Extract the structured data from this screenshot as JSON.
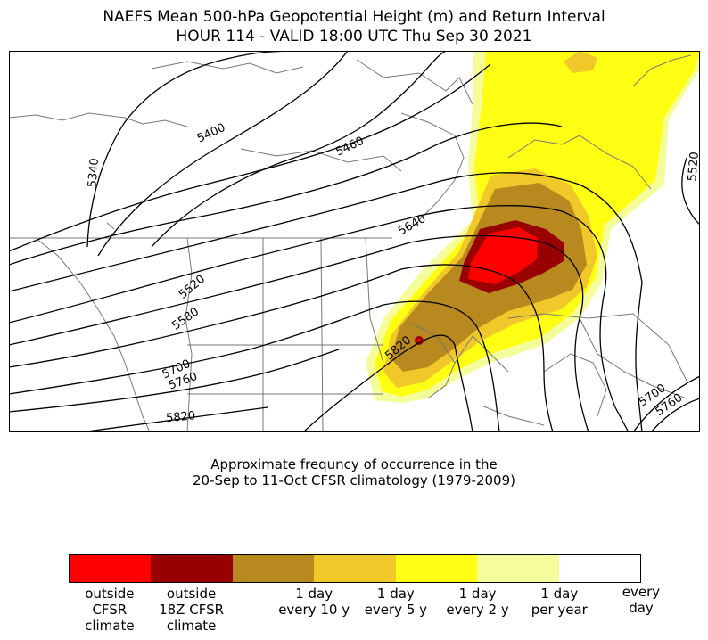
{
  "title_line1": "NAEFS Mean 500-hPa Geopotential Height (m) and Return Interval",
  "title_line2": "HOUR 114 - VALID 18:00 UTC Thu Sep 30 2021",
  "caption_line1": "Approximate frequncy of occurrence in the",
  "caption_line2": "20-Sep to 11-Oct CFSR climatology (1979-2009)",
  "contour_labels": [
    "5340",
    "5400",
    "5460",
    "5520",
    "5580",
    "5640",
    "5700",
    "5760",
    "5820",
    "5520",
    "5700",
    "5760"
  ],
  "legend": {
    "swatches": [
      {
        "color": "#ff0000"
      },
      {
        "color": "#990000"
      },
      {
        "color": "#b8891e"
      },
      {
        "color": "#f0c82a"
      },
      {
        "color": "#ffff14"
      },
      {
        "color": "#f5fc9b"
      },
      {
        "color": "#ffffff"
      }
    ],
    "labels": [
      "outside\nCFSR\nclimate",
      "outside\n18Z CFSR\nclimate",
      "1 day\nevery 10 y",
      "1 day\nevery 5 y",
      "1 day\nevery 2 y",
      "1 day\nper year",
      "every\nday"
    ]
  }
}
